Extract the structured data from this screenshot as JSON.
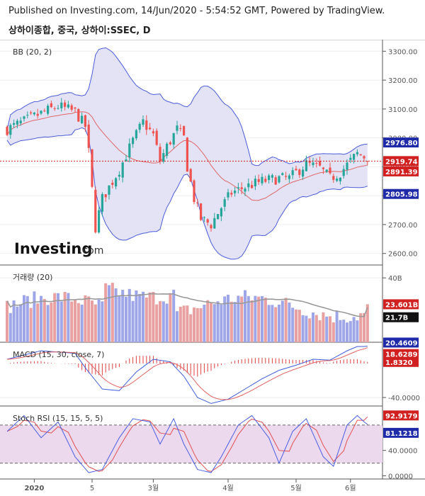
{
  "header": {
    "published": "Published on Investing.com, 14/Jun/2020 - 5:54:52 GMT, Powered by TradingView.",
    "symbol": "상하이종합, 중국, 상하이:SSEC, D"
  },
  "colors": {
    "up": "#26a69a",
    "down": "#ef5350",
    "band_fill": "#e3e3f5",
    "band_line": "#4c5cd8",
    "basis": "#e06666",
    "tag_blue": "#1e2aa8",
    "tag_red": "#d02020",
    "tag_black": "#111111"
  },
  "logo": {
    "brand": "Investing",
    "suffix": ".com"
  },
  "chart_data": [
    {
      "type": "candlestick",
      "title": "BB (20, 2)",
      "ylim": [
        2560,
        3340
      ],
      "y_ticks": [
        "3300.00",
        "3200.00",
        "3100.00",
        "3000.00",
        "2900.00",
        "2800.00",
        "2700.00",
        "2600.00"
      ],
      "y_tick_values": [
        3300,
        3200,
        3100,
        3000,
        2900,
        2800,
        2700,
        2600
      ],
      "last_close": 2919.74,
      "bb_upper_last": 2976.8,
      "bb_basis_last": 2891.39,
      "bb_lower_last": 2805.98,
      "tags": [
        "2976.80",
        "2919.74",
        "2891.39",
        "2805.98"
      ],
      "keypoints": [
        [
          0,
          3030
        ],
        [
          10,
          3085
        ],
        [
          15,
          3110
        ],
        [
          20,
          3090
        ],
        [
          23,
          3040
        ],
        [
          24,
          2950
        ],
        [
          26,
          2690
        ],
        [
          28,
          2790
        ],
        [
          33,
          2890
        ],
        [
          37,
          2990
        ],
        [
          40,
          3055
        ],
        [
          43,
          3010
        ],
        [
          45,
          2920
        ],
        [
          47,
          2970
        ],
        [
          50,
          3030
        ],
        [
          52,
          3000
        ],
        [
          53,
          2900
        ],
        [
          55,
          2790
        ],
        [
          57,
          2720
        ],
        [
          60,
          2700
        ],
        [
          63,
          2760
        ],
        [
          66,
          2810
        ],
        [
          70,
          2830
        ],
        [
          75,
          2850
        ],
        [
          80,
          2860
        ],
        [
          83,
          2860
        ],
        [
          85,
          2880
        ],
        [
          88,
          2910
        ],
        [
          92,
          2895
        ],
        [
          95,
          2860
        ],
        [
          98,
          2880
        ],
        [
          101,
          2920
        ],
        [
          103,
          2945
        ],
        [
          105,
          2935
        ],
        [
          106,
          2920
        ]
      ],
      "n_candles": 107
    },
    {
      "type": "bar",
      "title": "거래량 (20)",
      "y_ticks": [
        "40B"
      ],
      "y_tick_values": [
        40
      ],
      "ylim": [
        0,
        48
      ],
      "unit": "B",
      "last_value": 23.601,
      "ma_last": 21.7,
      "tags": [
        "23.601B",
        "21.7B"
      ]
    },
    {
      "type": "line",
      "title": "MACD (15, 30, close, 7)",
      "ylim": [
        -50,
        25
      ],
      "y_ticks": [
        "-40.0000"
      ],
      "y_tick_values": [
        -40
      ],
      "macd_last": 20.4609,
      "signal_last": 18.6289,
      "hist_last": 1.832,
      "tags": [
        "20.4609",
        "18.6289",
        "1.8320"
      ],
      "macd_keypoints": [
        [
          0,
          5
        ],
        [
          10,
          15
        ],
        [
          20,
          12
        ],
        [
          23,
          -5
        ],
        [
          28,
          -30
        ],
        [
          33,
          -32
        ],
        [
          38,
          -10
        ],
        [
          43,
          5
        ],
        [
          48,
          2
        ],
        [
          52,
          -15
        ],
        [
          56,
          -40
        ],
        [
          60,
          -47
        ],
        [
          65,
          -42
        ],
        [
          70,
          -30
        ],
        [
          75,
          -18
        ],
        [
          80,
          -8
        ],
        [
          85,
          -2
        ],
        [
          90,
          5
        ],
        [
          95,
          4
        ],
        [
          100,
          15
        ],
        [
          103,
          20
        ],
        [
          106,
          20
        ]
      ]
    },
    {
      "type": "line",
      "title": "Stoch RSI (15, 15, 5, 5)",
      "ylim": [
        -5,
        110
      ],
      "y_ticks": [
        "40.0000",
        "0.0000"
      ],
      "y_tick_values": [
        40,
        0
      ],
      "band": [
        20,
        80
      ],
      "k_last": 81.1218,
      "d_last": 92.9179,
      "tags": [
        "92.9179",
        "81.1218"
      ],
      "k_keypoints": [
        [
          0,
          70
        ],
        [
          5,
          95
        ],
        [
          10,
          60
        ],
        [
          15,
          85
        ],
        [
          20,
          30
        ],
        [
          24,
          5
        ],
        [
          28,
          10
        ],
        [
          33,
          60
        ],
        [
          37,
          90
        ],
        [
          42,
          85
        ],
        [
          45,
          50
        ],
        [
          49,
          90
        ],
        [
          52,
          50
        ],
        [
          56,
          10
        ],
        [
          60,
          5
        ],
        [
          63,
          30
        ],
        [
          68,
          80
        ],
        [
          72,
          95
        ],
        [
          77,
          60
        ],
        [
          80,
          20
        ],
        [
          84,
          70
        ],
        [
          88,
          90
        ],
        [
          93,
          30
        ],
        [
          96,
          15
        ],
        [
          100,
          80
        ],
        [
          103,
          95
        ],
        [
          106,
          80
        ]
      ]
    }
  ],
  "x_axis": {
    "labels": [
      "2020",
      "5",
      "3월",
      "4월",
      "5월",
      "6월"
    ],
    "label_index": [
      8,
      25,
      43,
      65,
      85,
      101
    ]
  }
}
